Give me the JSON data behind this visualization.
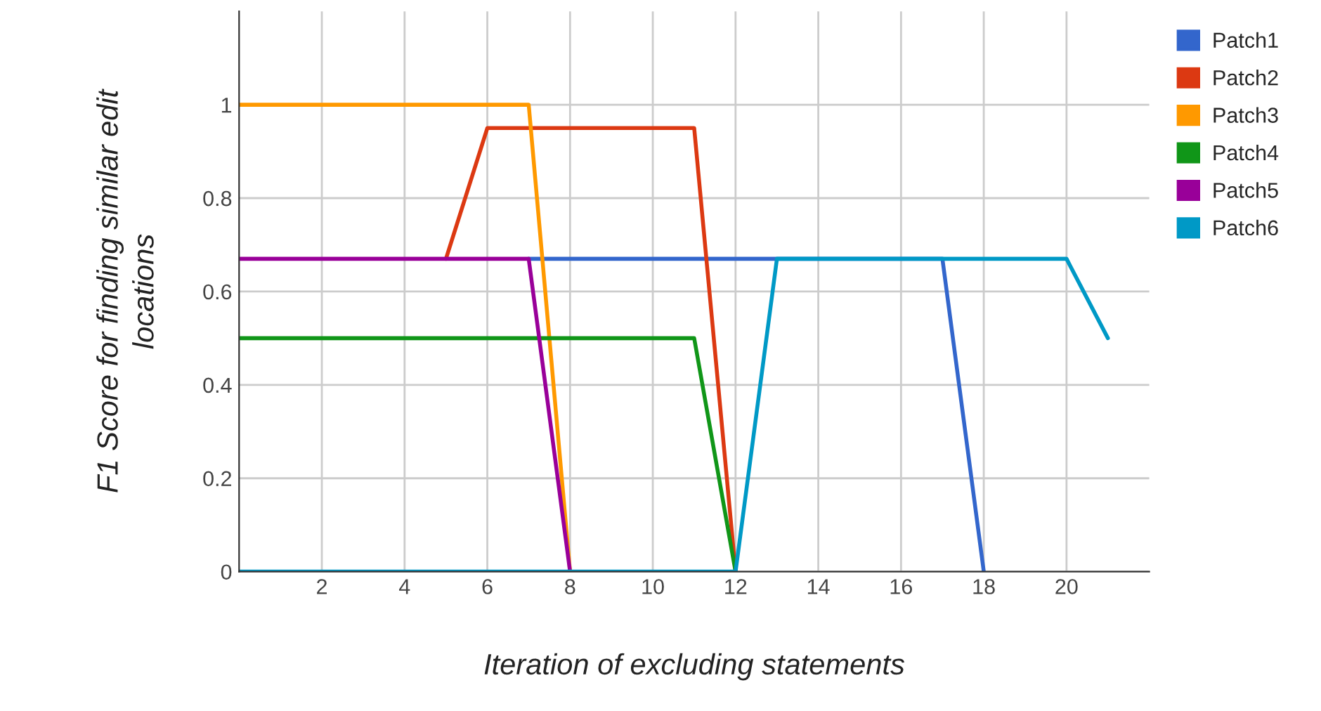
{
  "chart_data": {
    "type": "line",
    "xlabel": "Iteration of excluding statements",
    "ylabel": "F1 Score for finding similar edit\nlocations",
    "xlim": [
      0,
      22
    ],
    "xticks": [
      2,
      4,
      6,
      8,
      10,
      12,
      14,
      16,
      18,
      20
    ],
    "ylim": [
      0,
      1.2
    ],
    "yticks": [
      0,
      0.2,
      0.4,
      0.6,
      0.8,
      1
    ],
    "grid": true,
    "legend": "right",
    "marker": "none",
    "line_style": "solid",
    "series": [
      {
        "name": "Patch1",
        "color": "#3366cc",
        "x": [
          7,
          8,
          9,
          10,
          11,
          12,
          13,
          14,
          15,
          16,
          17,
          18
        ],
        "values": [
          0.67,
          0.67,
          0.67,
          0.67,
          0.67,
          0.67,
          0.67,
          0.67,
          0.67,
          0.67,
          0.67,
          0
        ]
      },
      {
        "name": "Patch2",
        "color": "#dc3912",
        "x": [
          5,
          6,
          7,
          8,
          9,
          10,
          11,
          12
        ],
        "values": [
          0.67,
          0.95,
          0.95,
          0.95,
          0.95,
          0.95,
          0.95,
          0
        ]
      },
      {
        "name": "Patch3",
        "color": "#ff9900",
        "x": [
          0,
          1,
          2,
          3,
          4,
          5,
          6,
          7,
          8
        ],
        "values": [
          1,
          1,
          1,
          1,
          1,
          1,
          1,
          1,
          0
        ]
      },
      {
        "name": "Patch4",
        "color": "#109618",
        "x": [
          0,
          1,
          2,
          3,
          4,
          5,
          6,
          7,
          8,
          9,
          10,
          11,
          12
        ],
        "values": [
          0.5,
          0.5,
          0.5,
          0.5,
          0.5,
          0.5,
          0.5,
          0.5,
          0.5,
          0.5,
          0.5,
          0.5,
          0
        ]
      },
      {
        "name": "Patch5",
        "color": "#990099",
        "x": [
          0,
          1,
          2,
          3,
          4,
          5,
          6,
          7,
          8
        ],
        "values": [
          0.67,
          0.67,
          0.67,
          0.67,
          0.67,
          0.67,
          0.67,
          0.67,
          0
        ]
      },
      {
        "name": "Patch6",
        "color": "#0099c6",
        "x": [
          0,
          1,
          2,
          3,
          4,
          5,
          6,
          7,
          8,
          9,
          10,
          11,
          12,
          13,
          14,
          15,
          16,
          17,
          18,
          19,
          20,
          21
        ],
        "values": [
          0,
          0,
          0,
          0,
          0,
          0,
          0,
          0,
          0,
          0,
          0,
          0,
          0,
          0.67,
          0.67,
          0.67,
          0.67,
          0.67,
          0.67,
          0.67,
          0.67,
          0.5
        ]
      }
    ]
  }
}
